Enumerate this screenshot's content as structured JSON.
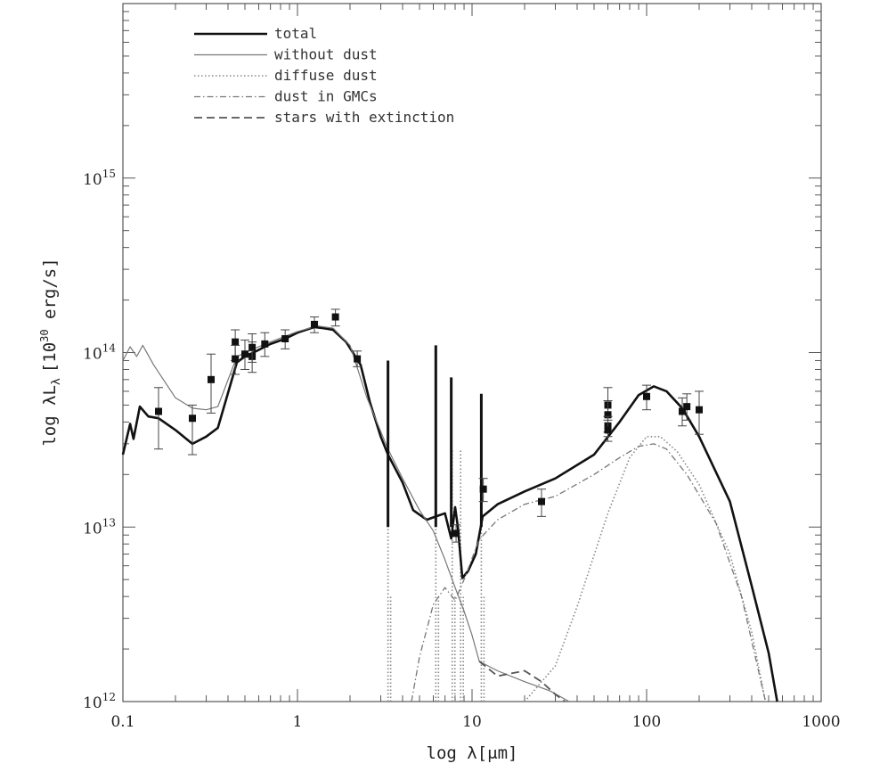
{
  "chart_data": {
    "type": "line",
    "xscale": "log",
    "yscale": "log",
    "xlim": [
      0.1,
      1000
    ],
    "ylim": [
      1000000000000.0,
      1e+16
    ],
    "xlabel": "log λ[μm]",
    "ylabel": "log λL",
    "ylabel_sub": "λ",
    "ylabel_unit": "[10",
    "ylabel_unit_sup": "30",
    "ylabel_unit_end": " erg/s]",
    "x_ticks": [
      {
        "v": 0.1,
        "label": "0.1"
      },
      {
        "v": 1,
        "label": "1"
      },
      {
        "v": 10,
        "label": "10"
      },
      {
        "v": 100,
        "label": "100"
      },
      {
        "v": 1000,
        "label": "1000"
      }
    ],
    "y_ticks": [
      {
        "v": 1000000000000.0,
        "exp": "12"
      },
      {
        "v": 10000000000000.0,
        "exp": "13"
      },
      {
        "v": 100000000000000.0,
        "exp": "14"
      },
      {
        "v": 1000000000000000.0,
        "exp": "15"
      }
    ],
    "y_tick_base": "10",
    "legend": [
      {
        "name": "total",
        "style": "thick"
      },
      {
        "name": "without dust",
        "style": "thin"
      },
      {
        "name": "diffuse dust",
        "style": "dotted"
      },
      {
        "name": "dust in GMCs",
        "style": "dashdot"
      },
      {
        "name": "stars with extinction",
        "style": "dashed"
      }
    ],
    "series": [
      {
        "name": "total",
        "style": "thick",
        "points": [
          [
            0.1,
            26000000000000.0
          ],
          [
            0.11,
            39000000000000.0
          ],
          [
            0.115,
            32000000000000.0
          ],
          [
            0.125,
            49000000000000.0
          ],
          [
            0.14,
            43000000000000.0
          ],
          [
            0.16,
            42000000000000.0
          ],
          [
            0.2,
            36000000000000.0
          ],
          [
            0.25,
            30000000000000.0
          ],
          [
            0.3,
            33000000000000.0
          ],
          [
            0.35,
            37000000000000.0
          ],
          [
            0.45,
            88000000000000.0
          ],
          [
            0.5,
            95000000000000.0
          ],
          [
            0.56,
            100000000000000.0
          ],
          [
            0.7,
            112000000000000.0
          ],
          [
            0.85,
            120000000000000.0
          ],
          [
            1.0,
            130000000000000.0
          ],
          [
            1.25,
            140000000000000.0
          ],
          [
            1.4,
            138000000000000.0
          ],
          [
            1.6,
            135000000000000.0
          ],
          [
            1.9,
            115000000000000.0
          ],
          [
            2.3,
            85000000000000.0
          ],
          [
            2.6,
            52000000000000.0
          ],
          [
            3.0,
            33000000000000.0
          ],
          [
            3.3,
            26000000000000.0
          ],
          [
            4.0,
            18000000000000.0
          ],
          [
            4.6,
            12500000000000.0
          ],
          [
            5.5,
            11000000000000.0
          ],
          [
            6.2,
            11500000000000.0
          ],
          [
            7.0,
            12000000000000.0
          ],
          [
            7.6,
            8600000000000.0
          ],
          [
            8.0,
            13000000000000.0
          ],
          [
            8.3,
            10000000000000.0
          ],
          [
            8.8,
            5100000000000.0
          ],
          [
            9.5,
            5600000000000.0
          ],
          [
            10.5,
            7000000000000.0
          ],
          [
            11.5,
            11500000000000.0
          ],
          [
            14,
            13500000000000.0
          ],
          [
            20,
            16000000000000.0
          ],
          [
            30,
            19000000000000.0
          ],
          [
            50,
            26000000000000.0
          ],
          [
            70,
            40000000000000.0
          ],
          [
            90,
            57000000000000.0
          ],
          [
            110,
            64000000000000.0
          ],
          [
            130,
            60000000000000.0
          ],
          [
            160,
            48000000000000.0
          ],
          [
            200,
            33000000000000.0
          ],
          [
            300,
            14000000000000.0
          ],
          [
            400,
            4600000000000.0
          ],
          [
            500,
            1900000000000.0
          ],
          [
            560,
            1000000000000.0
          ]
        ]
      },
      {
        "name": "without dust",
        "style": "thin",
        "points": [
          [
            0.1,
            90000000000000.0
          ],
          [
            0.11,
            108000000000000.0
          ],
          [
            0.12,
            95000000000000.0
          ],
          [
            0.13,
            110000000000000.0
          ],
          [
            0.15,
            85000000000000.0
          ],
          [
            0.2,
            55000000000000.0
          ],
          [
            0.25,
            48000000000000.0
          ],
          [
            0.3,
            47000000000000.0
          ],
          [
            0.35,
            49000000000000.0
          ],
          [
            0.45,
            95000000000000.0
          ],
          [
            0.56,
            105000000000000.0
          ],
          [
            0.7,
            115000000000000.0
          ],
          [
            1.0,
            132000000000000.0
          ],
          [
            1.3,
            142000000000000.0
          ],
          [
            1.6,
            138000000000000.0
          ],
          [
            2.0,
            110000000000000.0
          ],
          [
            2.5,
            55000000000000.0
          ],
          [
            3.3,
            28000000000000.0
          ],
          [
            4.0,
            19000000000000.0
          ],
          [
            5.0,
            12500000000000.0
          ],
          [
            6.0,
            9500000000000.0
          ],
          [
            7.0,
            6500000000000.0
          ],
          [
            8.0,
            4500000000000.0
          ],
          [
            9.0,
            3300000000000.0
          ],
          [
            10,
            2400000000000.0
          ],
          [
            11,
            1700000000000.0
          ],
          [
            14,
            1500000000000.0
          ],
          [
            20,
            1300000000000.0
          ],
          [
            28,
            1150000000000.0
          ],
          [
            36,
            1000000000000.0
          ]
        ]
      },
      {
        "name": "diffuse dust",
        "style": "dotted",
        "points": [
          [
            20,
            1000000000000.0
          ],
          [
            30,
            1600000000000.0
          ],
          [
            40,
            3500000000000.0
          ],
          [
            60,
            12000000000000.0
          ],
          [
            80,
            25000000000000.0
          ],
          [
            100,
            33000000000000.0
          ],
          [
            120,
            33000000000000.0
          ],
          [
            150,
            27000000000000.0
          ],
          [
            200,
            17500000000000.0
          ],
          [
            300,
            7000000000000.0
          ],
          [
            400,
            2500000000000.0
          ],
          [
            480,
            1000000000000.0
          ]
        ]
      },
      {
        "name": "dust in GMCs",
        "style": "dashdot",
        "points": [
          [
            4.5,
            1000000000000.0
          ],
          [
            5.0,
            1800000000000.0
          ],
          [
            6.0,
            3600000000000.0
          ],
          [
            7.0,
            4500000000000.0
          ],
          [
            8.0,
            3800000000000.0
          ],
          [
            9.0,
            5000000000000.0
          ],
          [
            11,
            8500000000000.0
          ],
          [
            14,
            11000000000000.0
          ],
          [
            20,
            13500000000000.0
          ],
          [
            30,
            15000000000000.0
          ],
          [
            50,
            20000000000000.0
          ],
          [
            70,
            25000000000000.0
          ],
          [
            90,
            29000000000000.0
          ],
          [
            110,
            30000000000000.0
          ],
          [
            130,
            28000000000000.0
          ],
          [
            170,
            20000000000000.0
          ],
          [
            250,
            10500000000000.0
          ],
          [
            350,
            4000000000000.0
          ],
          [
            460,
            1200000000000.0
          ],
          [
            480,
            1000000000000.0
          ]
        ]
      },
      {
        "name": "stars with extinction",
        "style": "dashed",
        "points": [
          [
            11,
            1700000000000.0
          ],
          [
            14,
            1400000000000.0
          ],
          [
            20,
            1500000000000.0
          ],
          [
            25,
            1300000000000.0
          ],
          [
            30,
            1100000000000.0
          ],
          [
            34,
            1000000000000.0
          ]
        ]
      }
    ],
    "spikes_total": [
      {
        "x": 3.3,
        "top": 90000000000000.0
      },
      {
        "x": 6.2,
        "top": 110000000000000.0
      },
      {
        "x": 7.6,
        "top": 72000000000000.0
      },
      {
        "x": 11.3,
        "top": 58000000000000.0
      }
    ],
    "spikes_dotted": [
      3.3,
      6.2,
      7.7,
      8.6,
      11.3
    ],
    "observations": [
      {
        "x": 0.16,
        "y": 46000000000000.0,
        "lo": 28000000000000.0,
        "hi": 63000000000000.0
      },
      {
        "x": 0.25,
        "y": 42000000000000.0,
        "lo": 26000000000000.0,
        "hi": 50000000000000.0
      },
      {
        "x": 0.32,
        "y": 70000000000000.0,
        "lo": 45000000000000.0,
        "hi": 98000000000000.0
      },
      {
        "x": 0.44,
        "y": 115000000000000.0,
        "lo": 90000000000000.0,
        "hi": 135000000000000.0
      },
      {
        "x": 0.44,
        "y": 92000000000000.0,
        "lo": 75000000000000.0,
        "hi": 110000000000000.0
      },
      {
        "x": 0.5,
        "y": 98000000000000.0,
        "lo": 80000000000000.0,
        "hi": 118000000000000.0
      },
      {
        "x": 0.55,
        "y": 95000000000000.0,
        "lo": 77000000000000.0,
        "hi": 115000000000000.0
      },
      {
        "x": 0.55,
        "y": 107000000000000.0,
        "lo": 88000000000000.0,
        "hi": 128000000000000.0
      },
      {
        "x": 0.65,
        "y": 112000000000000.0,
        "lo": 95000000000000.0,
        "hi": 130000000000000.0
      },
      {
        "x": 0.85,
        "y": 120000000000000.0,
        "lo": 105000000000000.0,
        "hi": 135000000000000.0
      },
      {
        "x": 1.25,
        "y": 145000000000000.0,
        "lo": 130000000000000.0,
        "hi": 160000000000000.0
      },
      {
        "x": 1.65,
        "y": 160000000000000.0,
        "lo": 142000000000000.0,
        "hi": 177000000000000.0
      },
      {
        "x": 2.2,
        "y": 92000000000000.0,
        "lo": 83000000000000.0,
        "hi": 102000000000000.0
      },
      {
        "x": 8.1,
        "y": 9200000000000.0,
        "lo": 8200000000000.0,
        "hi": 10300000000000.0
      },
      {
        "x": 11.6,
        "y": 16500000000000.0,
        "lo": 14000000000000.0,
        "hi": 19000000000000.0
      },
      {
        "x": 25,
        "y": 14000000000000.0,
        "lo": 11500000000000.0,
        "hi": 16500000000000.0
      },
      {
        "x": 60,
        "y": 50000000000000.0,
        "lo": 43000000000000.0,
        "hi": 63000000000000.0
      },
      {
        "x": 60,
        "y": 44000000000000.0,
        "lo": 35000000000000.0,
        "hi": 53000000000000.0
      },
      {
        "x": 60,
        "y": 38000000000000.0,
        "lo": 33000000000000.0,
        "hi": 43000000000000.0
      },
      {
        "x": 60,
        "y": 36000000000000.0,
        "lo": 31000000000000.0,
        "hi": 41000000000000.0
      },
      {
        "x": 100,
        "y": 56000000000000.0,
        "lo": 47000000000000.0,
        "hi": 65000000000000.0
      },
      {
        "x": 160,
        "y": 46000000000000.0,
        "lo": 38000000000000.0,
        "hi": 55000000000000.0
      },
      {
        "x": 170,
        "y": 49000000000000.0,
        "lo": 41000000000000.0,
        "hi": 58000000000000.0
      },
      {
        "x": 200,
        "y": 47000000000000.0,
        "lo": 34000000000000.0,
        "hi": 60000000000000.0
      }
    ]
  }
}
